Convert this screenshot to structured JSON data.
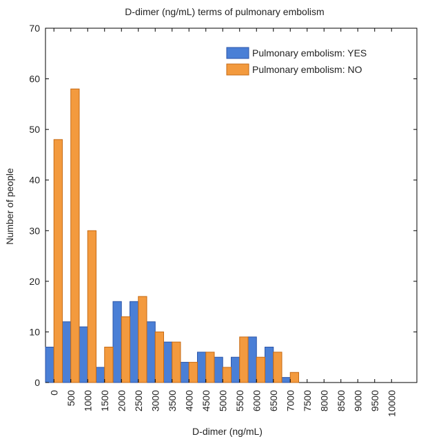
{
  "chart_data": {
    "type": "bar",
    "title": "D-dimer (ng/mL) terms of pulmonary embolism",
    "xlabel": "D-dimer (ng/mL)",
    "ylabel": "Number of people",
    "ylim": [
      0,
      70
    ],
    "yticks": [
      "0",
      "10",
      "20",
      "30",
      "40",
      "50",
      "60",
      "70"
    ],
    "categories": [
      "0",
      "500",
      "1000",
      "1500",
      "2000",
      "2500",
      "3000",
      "3500",
      "4000",
      "4500",
      "5000",
      "5500",
      "6000",
      "6500",
      "7000",
      "7500",
      "8000",
      "8500",
      "9000",
      "9500",
      "10000"
    ],
    "series": [
      {
        "name": "Pulmonary embolism: YES",
        "color": "#4a7fd6",
        "edge": "#2c55a8",
        "values": [
          7,
          12,
          11,
          3,
          16,
          16,
          12,
          8,
          4,
          6,
          5,
          5,
          9,
          7,
          1,
          0,
          0,
          0,
          0,
          0,
          0
        ]
      },
      {
        "name": "Pulmonary embolism: NO",
        "color": "#f39a3e",
        "edge": "#c66a14",
        "values": [
          48,
          58,
          30,
          7,
          13,
          17,
          10,
          8,
          4,
          6,
          3,
          9,
          5,
          6,
          2,
          0,
          0,
          0,
          0,
          0,
          0
        ]
      }
    ],
    "legend_position": "top-right",
    "grid": false
  }
}
